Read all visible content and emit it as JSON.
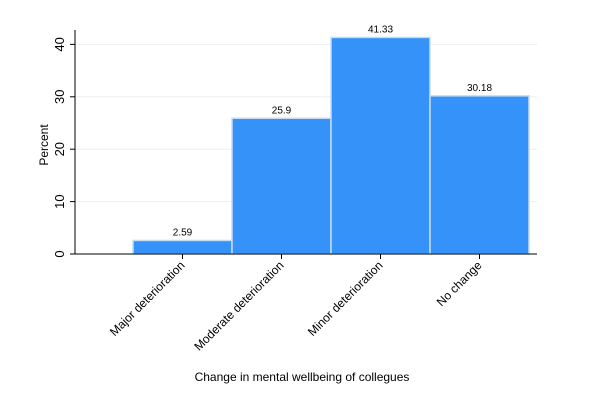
{
  "chart_data": {
    "type": "bar",
    "title": "",
    "categories": [
      "Major deterioration",
      "Moderate deterioration",
      "Minor deterioration",
      "No change"
    ],
    "values": [
      2.59,
      25.9,
      41.33,
      30.18
    ],
    "data_labels": [
      "2.59",
      "25.9",
      "41.33",
      "30.18"
    ],
    "xlabel": "Change in mental wellbeing of collegues",
    "ylabel": "Percent",
    "ylim": [
      0,
      42
    ],
    "yticks": [
      0,
      10,
      20,
      30,
      40
    ],
    "grid": true,
    "bar_color": "#3592f8",
    "bar_edge_color": "#c7dcf2"
  }
}
